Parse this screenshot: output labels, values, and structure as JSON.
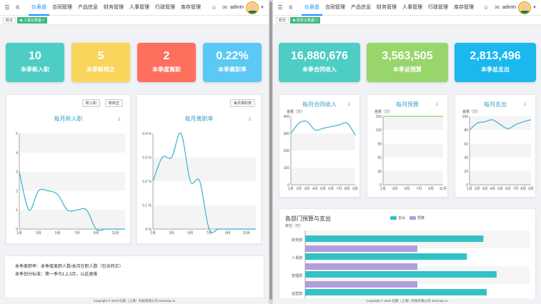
{
  "nav": {
    "menu": [
      "仪表盘",
      "合同管理",
      "产品信息",
      "财务管理",
      "人事管理",
      "行政管理",
      "库存管理"
    ],
    "active": "仪表盘",
    "user": "admin"
  },
  "left": {
    "tags": {
      "home": "概览",
      "current": "人事仪表盘"
    },
    "stats": [
      {
        "value": "10",
        "label": "本季新入职",
        "color": "#4ecdc4"
      },
      {
        "value": "5",
        "label": "本季新转正",
        "color": "#f9d55b"
      },
      {
        "value": "2",
        "label": "本季度离职",
        "color": "#fe6f5e"
      },
      {
        "value": "0.22%",
        "label": "本季离职率",
        "color": "#5bc8f5"
      }
    ],
    "buttons": {
      "new_hire": "新入职",
      "new_regular": "新转正",
      "monthly_leave": "每月离职表"
    },
    "notes": [
      "本季离职率：本季度离职人数/本月在职人数（包含转正）",
      "本季划分标准：第一季为1,2,3月，以此类推"
    ],
    "footer": "Copyright © 2019 信图（上海）科技有限公司 xinemap.cn"
  },
  "right": {
    "tags": {
      "home": "概览",
      "current": "财务仪表盘"
    },
    "stats": [
      {
        "value": "16,880,676",
        "label": "本季合同收入",
        "color": "#4ecdc4"
      },
      {
        "value": "3,563,505",
        "label": "本季总预算",
        "color": "#98d66b"
      },
      {
        "value": "2,813,496",
        "label": "本季总支出",
        "color": "#1bb7ef"
      }
    ],
    "legend": {
      "expense": "支出",
      "budget": "预算"
    },
    "footer": "Copyright © 2019 信图（上海）科技有限公司 xinemap.cn"
  },
  "chart_data": [
    {
      "type": "line",
      "title": "每月新入职",
      "x": [
        "1月",
        "2月",
        "3月",
        "4月",
        "5月",
        "6月",
        "7月",
        "8月",
        "9月",
        "10月",
        "11月",
        "12月"
      ],
      "xticks": [
        "1月",
        "3月",
        "5月",
        "7月",
        "9月",
        "11月"
      ],
      "series": [
        {
          "values": [
            3,
            1,
            2,
            2,
            1.8,
            1,
            1,
            1,
            0,
            0,
            0,
            0
          ]
        }
      ],
      "ylim": [
        0,
        5
      ],
      "yticks": [
        0,
        1,
        2,
        3,
        4,
        5
      ],
      "color": "#3ab0d6"
    },
    {
      "type": "line",
      "title": "每月离职率",
      "x": [
        "1月",
        "2月",
        "3月",
        "4月",
        "5月",
        "6月",
        "7月",
        "8月",
        "9月",
        "10月",
        "11月",
        "12月"
      ],
      "xticks": [
        "1月",
        "3月",
        "5月",
        "7月",
        "9月",
        "11月"
      ],
      "series": [
        {
          "values": [
            0.2,
            0.3,
            0.3,
            0.4,
            0.2,
            0.2,
            0,
            0,
            0,
            0,
            0,
            0
          ]
        }
      ],
      "ylim": [
        0,
        0.4
      ],
      "yticks": [
        "0 %",
        "0.1 %",
        "0.2 %",
        "0.3 %",
        "0.4 %"
      ],
      "color": "#3ab0d6"
    },
    {
      "type": "line",
      "title": "每月合同收入",
      "unit": "金额（万）",
      "x": [
        "1月",
        "2月",
        "3月",
        "4月",
        "5月",
        "6月",
        "7月",
        "8月",
        "9月"
      ],
      "series": [
        {
          "values": [
            300,
            360,
            370,
            320,
            330,
            340,
            350,
            360,
            290
          ]
        }
      ],
      "ylim": [
        0,
        400
      ],
      "yticks": [
        0,
        100,
        200,
        300,
        400
      ],
      "color": "#3ab0d6"
    },
    {
      "type": "line",
      "title": "每月预算",
      "unit": "金额（万）",
      "x": [
        "1月",
        "3月",
        "5月",
        "7月",
        "9月",
        "11月"
      ],
      "series": [
        {
          "values": [
            150,
            150,
            150,
            150,
            150,
            150
          ]
        }
      ],
      "ylim": [
        0,
        150
      ],
      "yticks": [
        0,
        30,
        60,
        90,
        120,
        150
      ],
      "color": "#8fd16a"
    },
    {
      "type": "line",
      "title": "每月支出",
      "unit": "金额（万）",
      "x": [
        "1月",
        "2月",
        "3月",
        "4月",
        "5月",
        "6月",
        "7月",
        "8月",
        "9月"
      ],
      "series": [
        {
          "values": [
            80,
            90,
            92,
            95,
            88,
            82,
            88,
            92,
            95
          ]
        }
      ],
      "ylim": [
        0,
        100
      ],
      "yticks": [
        0,
        20,
        40,
        60,
        80,
        100
      ],
      "color": "#3ab0d6"
    },
    {
      "type": "bar",
      "orientation": "horizontal",
      "title": "各部门预算与支出",
      "unit": "单位（万）",
      "categories": [
        "财务部",
        "人事部",
        "管理部",
        "运营部"
      ],
      "series": [
        {
          "name": "支出",
          "values": [
            270,
            245,
            290,
            275
          ],
          "color": "#33c1c6"
        },
        {
          "name": "预算",
          "values": [
            170,
            170,
            170,
            170
          ],
          "color": "#b39ddb"
        }
      ],
      "xlim": [
        0,
        340
      ]
    }
  ]
}
